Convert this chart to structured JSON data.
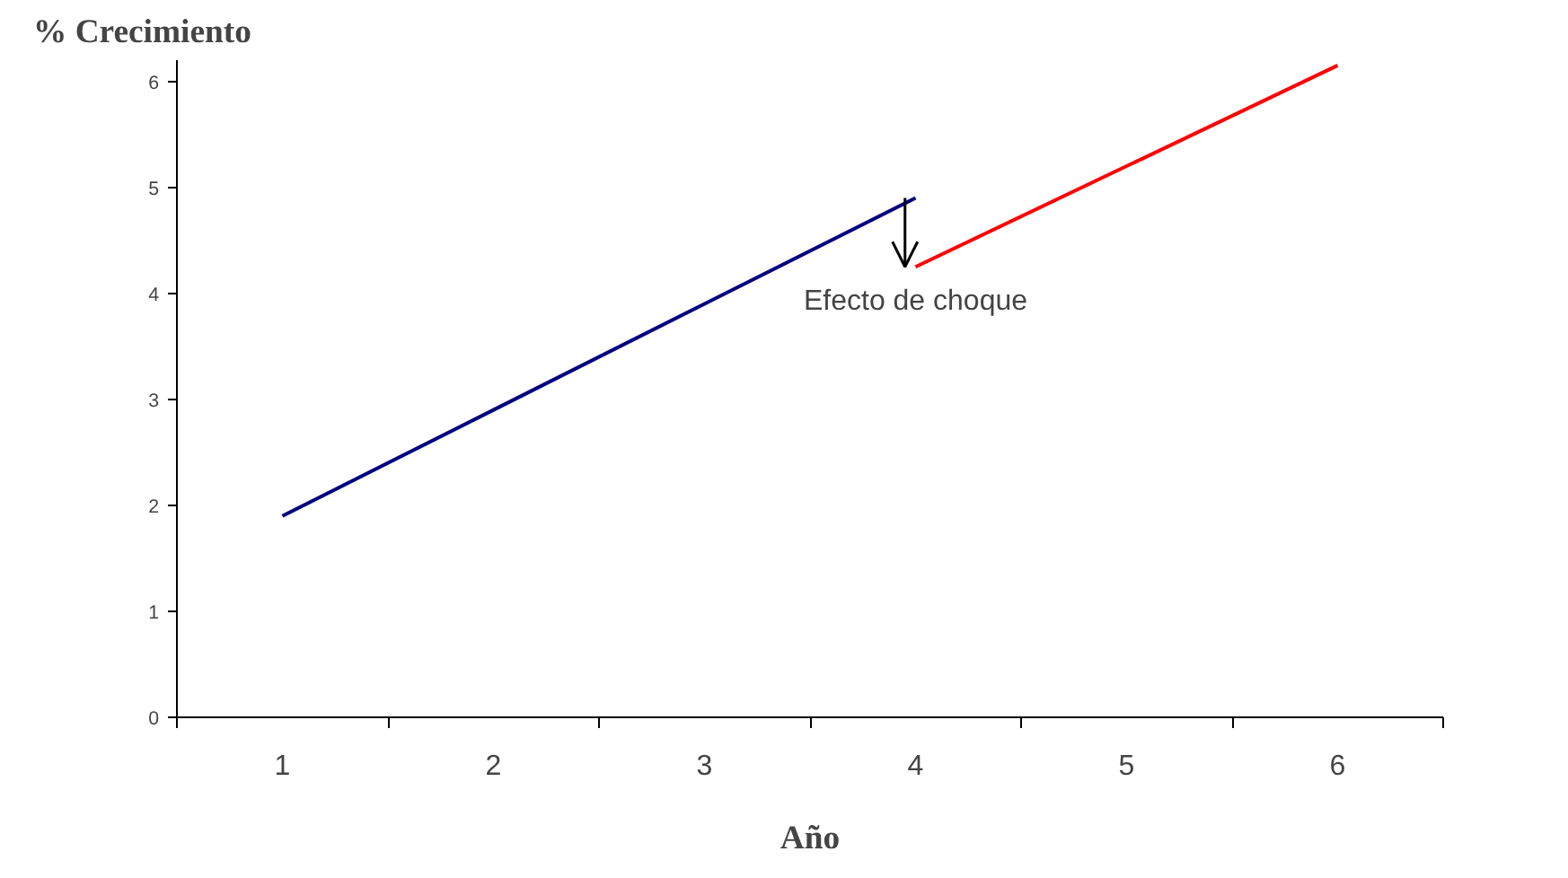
{
  "chart_data": {
    "type": "line",
    "ylabel": "% Crecimiento",
    "xlabel": "Año",
    "categories": [
      "1",
      "2",
      "3",
      "4",
      "5",
      "6"
    ],
    "series": [
      {
        "color": "#000080",
        "values": [
          1.9,
          2.9,
          3.9,
          4.9,
          null,
          null
        ]
      },
      {
        "color": "#ff0000",
        "values": [
          null,
          null,
          null,
          4.25,
          5.2,
          6.15
        ]
      }
    ],
    "ylim": [
      0,
      6.2
    ],
    "yticks": [
      0,
      1,
      2,
      3,
      4,
      5,
      6
    ],
    "marker": "none",
    "line_style": "solid",
    "annotations": [
      {
        "text": "Efecto de choque",
        "x": "4",
        "y": 4.25
      }
    ]
  }
}
